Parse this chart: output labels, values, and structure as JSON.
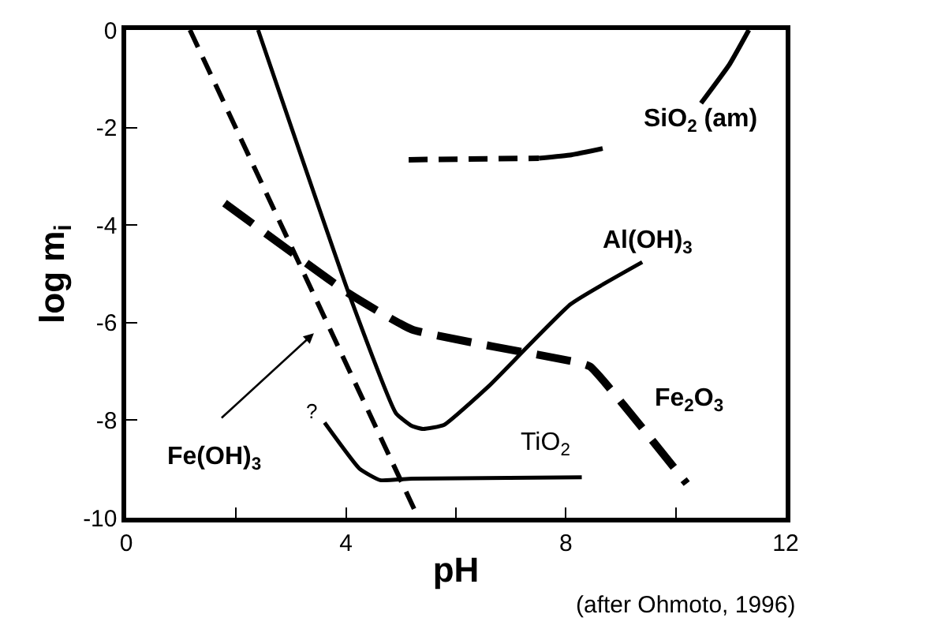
{
  "chart_data": {
    "type": "line",
    "xlabel": "pH",
    "ylabel": "log m$_{i}$",
    "xlim": [
      0,
      12
    ],
    "ylim": [
      -10,
      0
    ],
    "xticks": [
      0,
      {
        "value": 2,
        "label": null
      },
      4,
      {
        "value": 6,
        "label": null
      },
      8,
      {
        "value": 10,
        "label": null
      },
      12
    ],
    "yticks": [
      0,
      -2,
      -4,
      -6,
      -8,
      -10
    ],
    "marker": "none",
    "series": [
      {
        "color": "#000000",
        "line_style": "dashed",
        "x": [
          1.16,
          5.26
        ],
        "values": [
          0,
          -9.87
        ]
      },
      {
        "color": "#000000",
        "line_style": "solid",
        "x": [
          2.4,
          4.05,
          4.91,
          5.2,
          5.4,
          5.78,
          6.6,
          8.09,
          9.39
        ],
        "values": [
          0,
          -5.4,
          -7.86,
          -8.12,
          -8.18,
          -8.1,
          -7.3,
          -5.62,
          -4.76
        ]
      },
      {
        "color": "#000000",
        "line_style": "solid",
        "x": [
          3.61,
          4.25,
          4.62,
          5.2,
          8.29
        ],
        "values": [
          -8.05,
          -9.0,
          -9.23,
          -9.2,
          -9.17
        ]
      },
      {
        "color": "#000000",
        "line_style": "dashed",
        "x": [
          1.79,
          4.05,
          5.2,
          8.15,
          8.44,
          10.2
        ],
        "values": [
          -3.55,
          -5.4,
          -6.14,
          -6.8,
          -6.9,
          -9.3
        ]
      },
      {
        "color": "#000000",
        "line_style": "dashed",
        "x": [
          5.14,
          7.51
        ],
        "values": [
          -2.66,
          -2.63
        ]
      },
      {
        "color": "#000000",
        "line_style": "solid",
        "x": [
          7.51,
          8.1,
          8.67,
          9.5,
          10.46,
          10.98,
          11.33
        ],
        "values": [
          -2.63,
          -2.56,
          -2.43,
          null,
          -1.5,
          -0.7,
          0
        ]
      }
    ],
    "annotations": [
      "SiO$_{2}$ (am)",
      "Al(OH)$_{3}$",
      "Fe$_{2}$O$_{3}$",
      "TiO$_{2}$",
      "Fe(OH)$_{3}$",
      "?",
      "(after Ohmoto, 1996)"
    ]
  }
}
